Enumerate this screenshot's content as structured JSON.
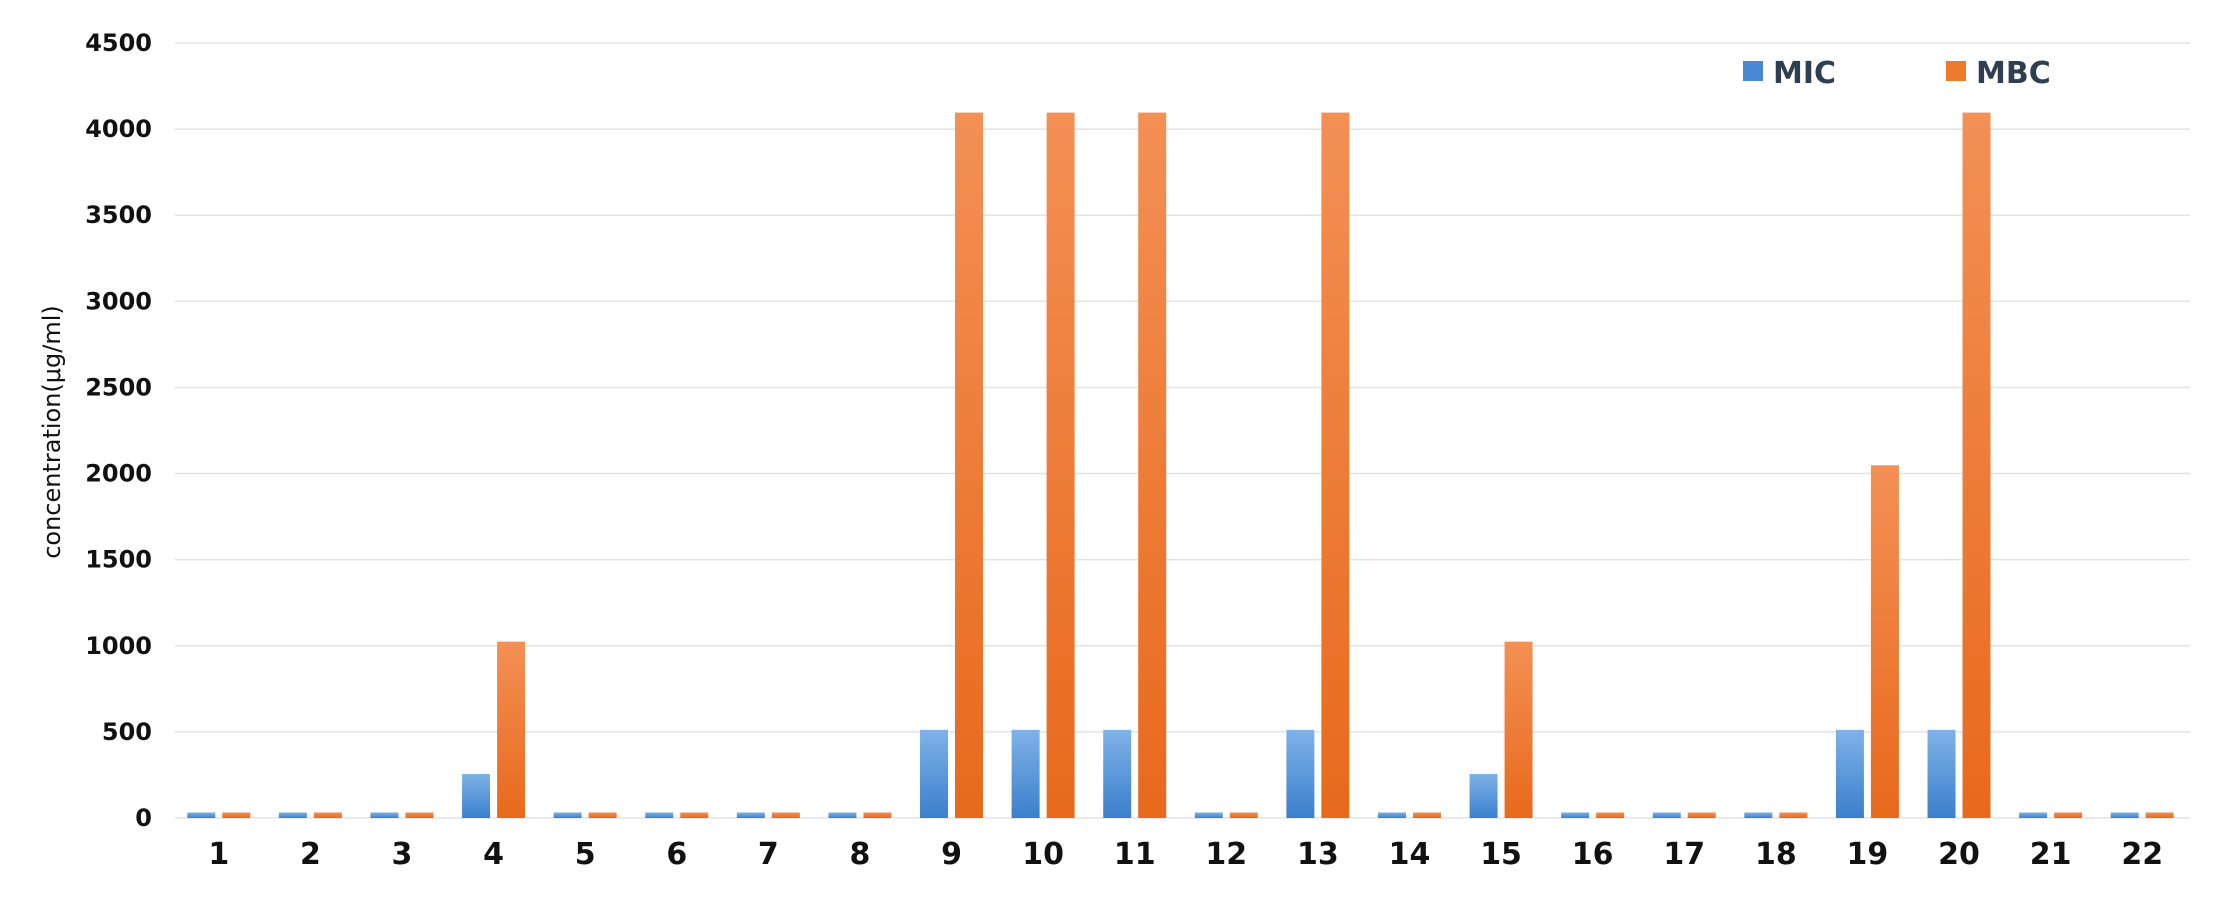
{
  "chart_data": {
    "type": "bar",
    "title": "",
    "xlabel": "",
    "ylabel": "concentration(μg/ml)",
    "ylim": [
      0,
      4500
    ],
    "yticks": [
      0,
      500,
      1000,
      1500,
      2000,
      2500,
      3000,
      3500,
      4000,
      4500
    ],
    "grid": true,
    "legend_position": "top-right",
    "categories": [
      "1",
      "2",
      "3",
      "4",
      "5",
      "6",
      "7",
      "8",
      "9",
      "10",
      "11",
      "12",
      "13",
      "14",
      "15",
      "16",
      "17",
      "18",
      "19",
      "20",
      "21",
      "22"
    ],
    "series": [
      {
        "name": "MIC",
        "color": "#4a8ad4",
        "values": [
          32,
          32,
          32,
          256,
          32,
          32,
          32,
          32,
          512,
          512,
          512,
          32,
          512,
          32,
          256,
          32,
          32,
          32,
          512,
          512,
          32,
          32
        ]
      },
      {
        "name": "MBC",
        "color": "#f07a2c",
        "values": [
          32,
          32,
          32,
          1024,
          32,
          32,
          32,
          32,
          4096,
          4096,
          4096,
          32,
          4096,
          32,
          1024,
          32,
          32,
          32,
          2048,
          4096,
          32,
          32
        ]
      }
    ]
  }
}
